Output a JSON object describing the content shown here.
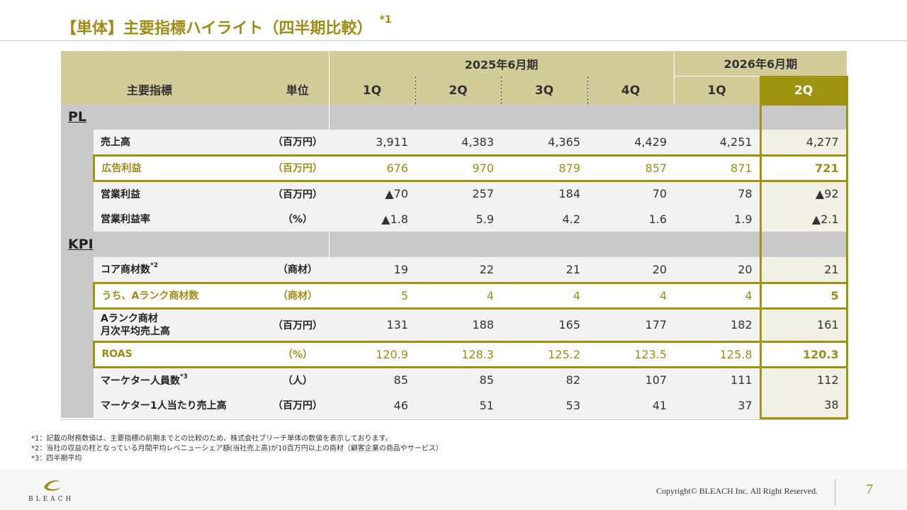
{
  "header": {
    "title": "【単体】主要指標ハイライト（四半期比較）",
    "title_note": "*1"
  },
  "table": {
    "col_metric": "主要指標",
    "col_unit": "単位",
    "year_a": "2025年6月期",
    "year_b": "2026年6月期",
    "quarters": [
      "1Q",
      "2Q",
      "3Q",
      "4Q",
      "1Q",
      "2Q"
    ],
    "section_pl": "PL",
    "section_kpi": "KPI",
    "rows": [
      {
        "name": "売上高",
        "unit": "（百万円）",
        "values": [
          "3,911",
          "4,383",
          "4,365",
          "4,429",
          "4,251",
          "4,277"
        ]
      },
      {
        "name": "広告利益",
        "unit": "（百万円）",
        "values": [
          "676",
          "970",
          "879",
          "857",
          "871",
          "721"
        ]
      },
      {
        "name": "営業利益",
        "unit": "（百万円）",
        "values": [
          "▲70",
          "257",
          "184",
          "70",
          "78",
          "▲92"
        ]
      },
      {
        "name": "営業利益率",
        "unit": "（%）",
        "values": [
          "▲1.8",
          "5.9",
          "4.2",
          "1.6",
          "1.9",
          "▲2.1"
        ]
      },
      {
        "name": "コア商材数",
        "note": "*2",
        "unit": "（商材）",
        "values": [
          "19",
          "22",
          "21",
          "20",
          "20",
          "21"
        ]
      },
      {
        "name": "うち、Aランク商材数",
        "unit": "（商材）",
        "values": [
          "5",
          "4",
          "4",
          "4",
          "4",
          "5"
        ]
      },
      {
        "name": "Aランク商材",
        "name2": "月次平均売上高",
        "unit": "（百万円）",
        "values": [
          "131",
          "188",
          "165",
          "177",
          "182",
          "161"
        ]
      },
      {
        "name": "ROAS",
        "unit": "（%）",
        "values": [
          "120.9",
          "128.3",
          "125.2",
          "123.5",
          "125.8",
          "120.3"
        ]
      },
      {
        "name": "マーケター人員数",
        "note": "*3",
        "unit": "（人）",
        "values": [
          "85",
          "85",
          "82",
          "107",
          "111",
          "112"
        ]
      },
      {
        "name": "マーケター1人当たり売上高",
        "unit": "（百万円）",
        "values": [
          "46",
          "51",
          "53",
          "41",
          "37",
          "38"
        ]
      }
    ]
  },
  "footnotes": [
    "*1：記載の財務数値は、主要指標の前期までとの比較のため、株式会社ブリーチ単体の数値を表示しております。",
    "*2：当社の収益の柱となっている月間平均レベニューシェア額(当社売上高)が10百万円以上の商材（顧客企業の商品やサービス）",
    "*3：四半期平均"
  ],
  "footer": {
    "logo_text": "BLEACH",
    "copyright": "Copyright© BLEACH Inc. All Right Reserved.",
    "page_number": "7"
  },
  "colors": {
    "accent": "#a08c14",
    "header_bg": "#d1cc98",
    "highlight_quarter": "#9e940f",
    "section_gray": "#c9c9c9"
  }
}
